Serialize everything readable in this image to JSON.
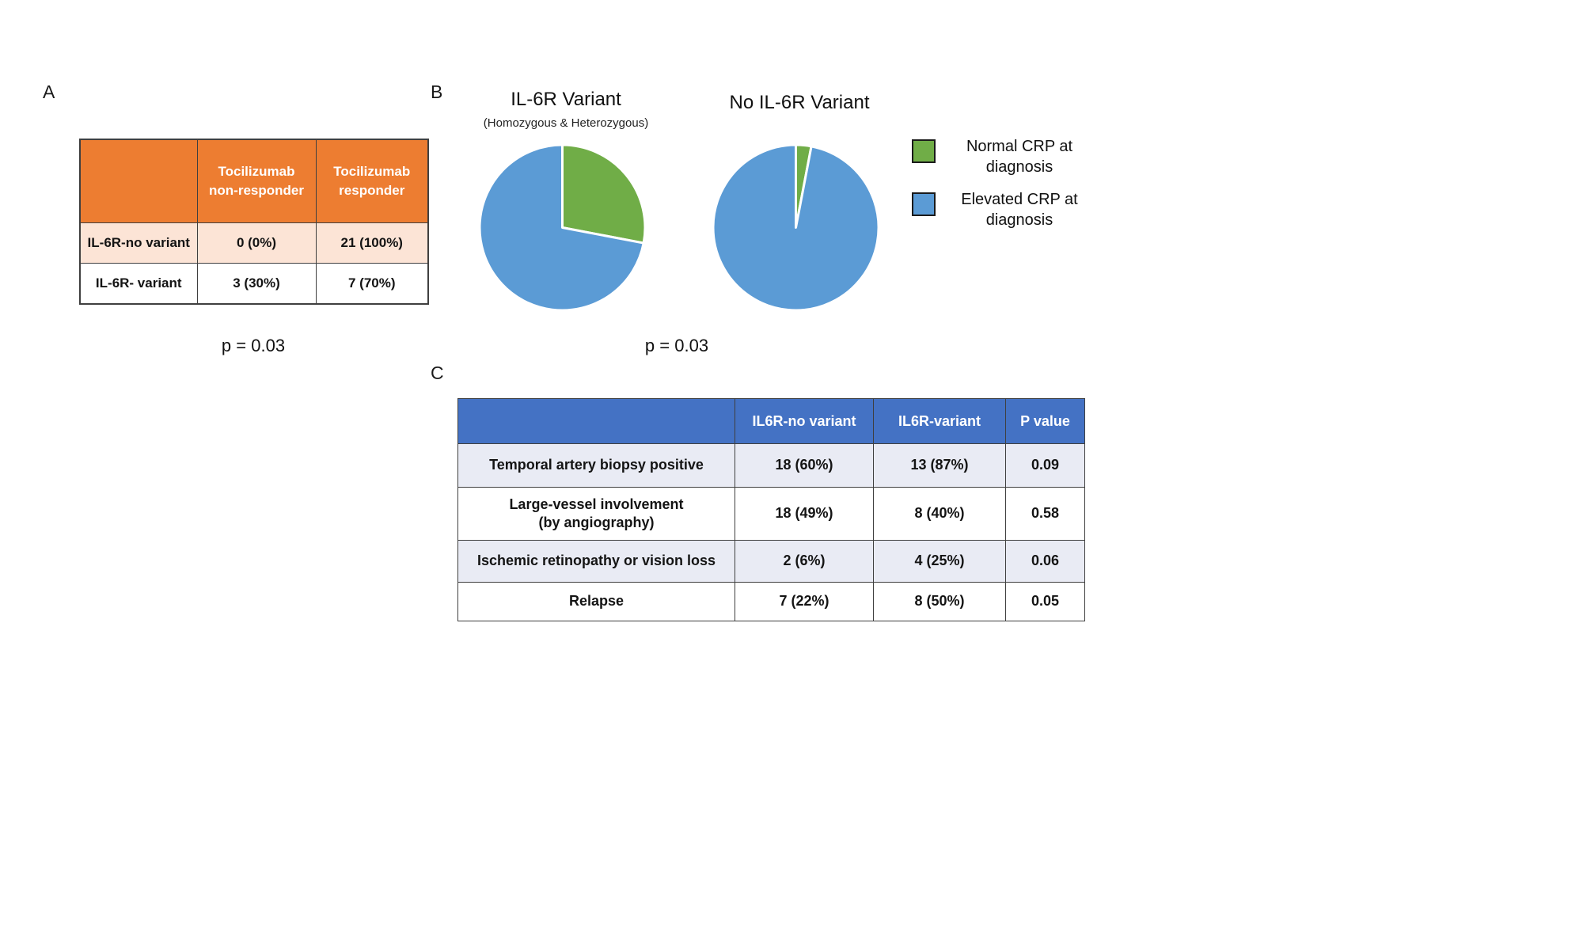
{
  "panel_labels": {
    "a": "A",
    "b": "B",
    "c": "C"
  },
  "p_values": {
    "a": "p = 0.03",
    "b": "p = 0.03"
  },
  "legend": {
    "items": [
      {
        "label": "Normal CRP at diagnosis",
        "color": "#70AD47"
      },
      {
        "label": "Elevated CRP at diagnosis",
        "color": "#5B9BD5"
      }
    ]
  },
  "colors": {
    "green": "#70AD47",
    "blue": "#5B9BD5",
    "orange_header": "#ED7D31",
    "orange_row": "#FCE4D6",
    "blue_header": "#4472C4",
    "lavender_row": "#E9EBF4"
  },
  "chart_data": [
    {
      "id": "tocilizumab-response-table",
      "type": "table",
      "columns": [
        "",
        "Tocilizumab non-responder",
        "Tocilizumab responder"
      ],
      "rows": [
        [
          "IL-6R-no variant",
          "0 (0%)",
          "21 (100%)"
        ],
        [
          "IL-6R- variant",
          "3 (30%)",
          "7 (70%)"
        ]
      ],
      "p_value": "p = 0.03"
    },
    {
      "id": "pie-il6r-variant",
      "type": "pie",
      "title": "IL-6R Variant",
      "subtitle": "(Homozygous & Heterozygous)",
      "slices": [
        {
          "label": "Normal CRP at diagnosis",
          "value": 28,
          "color": "#70AD47"
        },
        {
          "label": "Elevated CRP at diagnosis",
          "value": 72,
          "color": "#5B9BD5"
        }
      ],
      "p_value": "p = 0.03"
    },
    {
      "id": "pie-no-il6r-variant",
      "type": "pie",
      "title": "No IL-6R Variant",
      "subtitle": "",
      "slices": [
        {
          "label": "Normal CRP at diagnosis",
          "value": 3,
          "color": "#70AD47"
        },
        {
          "label": "Elevated CRP at diagnosis",
          "value": 97,
          "color": "#5B9BD5"
        }
      ],
      "p_value": "p = 0.03"
    },
    {
      "id": "clinical-features-table",
      "type": "table",
      "columns": [
        "",
        "IL6R-no variant",
        "IL6R-variant",
        "P value"
      ],
      "rows": [
        [
          "Temporal artery biopsy positive",
          "18 (60%)",
          "13 (87%)",
          "0.09"
        ],
        [
          "Large-vessel involvement\n(by angiography)",
          "18 (49%)",
          "8 (40%)",
          "0.58"
        ],
        [
          "Ischemic retinopathy or vision loss",
          "2 (6%)",
          "4 (25%)",
          "0.06"
        ],
        [
          "Relapse",
          "7 (22%)",
          "8 (50%)",
          "0.05"
        ]
      ]
    }
  ]
}
